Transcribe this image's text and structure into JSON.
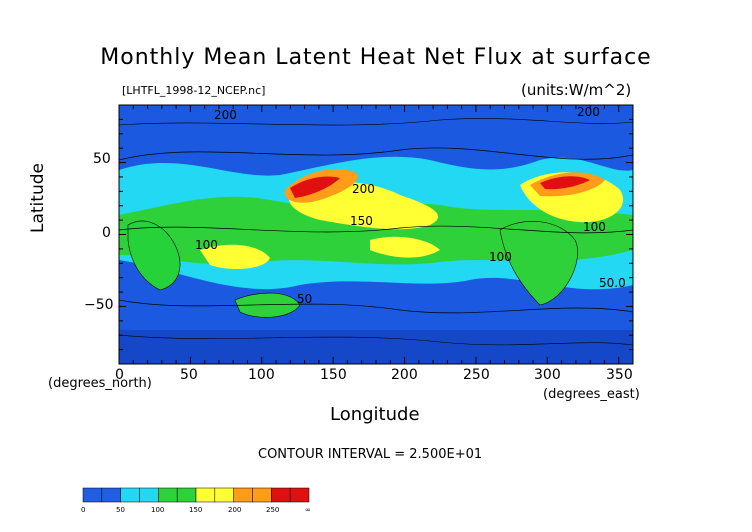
{
  "figure": {
    "title": "Monthly Mean Latent Heat Net Flux at surface",
    "filename": "[LHTFL_1998-12_NCEP.nc]",
    "units": "(units:W/m^2)",
    "x_axis_label": "Longitude",
    "y_axis_label": "Latitude",
    "x_units_note": "(degrees_east)",
    "y_units_note": "(degrees_north)",
    "contour_interval": "CONTOUR INTERVAL = 2.500E+01",
    "x_ticks": [
      "0",
      "50",
      "100",
      "150",
      "200",
      "250",
      "300",
      "350"
    ],
    "y_ticks": [
      "50",
      "0",
      "−50"
    ],
    "contour_labels": [
      "200",
      "150",
      "100",
      "50",
      "100",
      "200",
      "100",
      "50.0",
      "200"
    ]
  },
  "colorbar": {
    "labels": [
      "0",
      "50",
      "100",
      "150",
      "200",
      "250",
      "∞"
    ],
    "colors": [
      "#1f5fe0",
      "#22d8f2",
      "#2fd13a",
      "#ffff33",
      "#ff9c1a",
      "#e01010"
    ]
  },
  "map": {
    "ocean_color": "#1a59e0",
    "land_color": "#25d23a",
    "x_range": [
      0,
      360
    ],
    "y_range": [
      -90,
      90
    ]
  }
}
